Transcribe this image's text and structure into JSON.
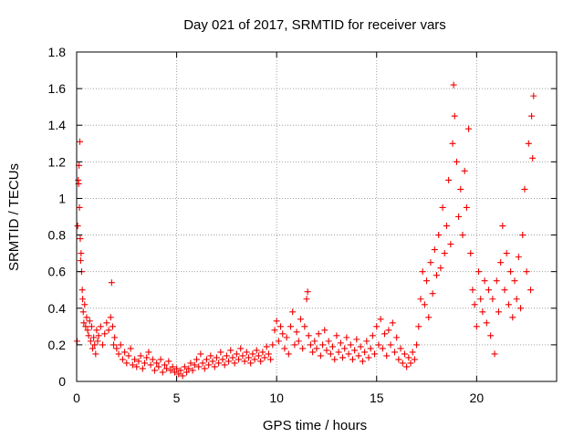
{
  "chart_data": {
    "type": "scatter",
    "title": "Day 021 of 2017, SRMTID for receiver vars",
    "xlabel": "GPS time / hours",
    "ylabel": "SRMTID / TECUs",
    "xlim": [
      0,
      24
    ],
    "ylim": [
      0,
      1.8
    ],
    "grid": true,
    "marker": "plus",
    "colors": {
      "points": "#ee0000",
      "axes": "#000000",
      "grid": "#a0a0a0"
    },
    "x_ticks": [
      {
        "value": 0,
        "label": "0"
      },
      {
        "value": 5,
        "label": "5"
      },
      {
        "value": 10,
        "label": "10"
      },
      {
        "value": 15,
        "label": "15"
      },
      {
        "value": 20,
        "label": "20"
      }
    ],
    "y_ticks": [
      {
        "value": 0,
        "label": "0"
      },
      {
        "value": 0.2,
        "label": "0.2"
      },
      {
        "value": 0.4,
        "label": "0.4"
      },
      {
        "value": 0.6,
        "label": "0.6"
      },
      {
        "value": 0.8,
        "label": "0.8"
      },
      {
        "value": 1.0,
        "label": "1"
      },
      {
        "value": 1.2,
        "label": "1.2"
      },
      {
        "value": 1.4,
        "label": "1.4"
      },
      {
        "value": 1.6,
        "label": "1.6"
      },
      {
        "value": 1.8,
        "label": "1.8"
      }
    ],
    "series": [
      {
        "name": "SRMTID",
        "points": [
          [
            0.02,
            0.22
          ],
          [
            0.05,
            0.85
          ],
          [
            0.08,
            1.1
          ],
          [
            0.1,
            1.08
          ],
          [
            0.12,
            1.18
          ],
          [
            0.14,
            0.95
          ],
          [
            0.16,
            1.31
          ],
          [
            0.18,
            0.78
          ],
          [
            0.2,
            0.66
          ],
          [
            0.22,
            0.7
          ],
          [
            0.25,
            0.6
          ],
          [
            0.28,
            0.5
          ],
          [
            0.3,
            0.45
          ],
          [
            0.33,
            0.38
          ],
          [
            0.36,
            0.32
          ],
          [
            0.4,
            0.42
          ],
          [
            0.45,
            0.3
          ],
          [
            0.5,
            0.35
          ],
          [
            0.55,
            0.28
          ],
          [
            0.6,
            0.25
          ],
          [
            0.65,
            0.33
          ],
          [
            0.7,
            0.22
          ],
          [
            0.75,
            0.3
          ],
          [
            0.8,
            0.18
          ],
          [
            0.85,
            0.24
          ],
          [
            0.9,
            0.2
          ],
          [
            0.95,
            0.15
          ],
          [
            1.0,
            0.28
          ],
          [
            1.05,
            0.22
          ],
          [
            1.1,
            0.25
          ],
          [
            1.2,
            0.3
          ],
          [
            1.3,
            0.2
          ],
          [
            1.4,
            0.26
          ],
          [
            1.5,
            0.32
          ],
          [
            1.6,
            0.28
          ],
          [
            1.7,
            0.35
          ],
          [
            1.75,
            0.54
          ],
          [
            1.8,
            0.3
          ],
          [
            1.85,
            0.2
          ],
          [
            1.9,
            0.24
          ],
          [
            2.0,
            0.18
          ],
          [
            2.1,
            0.15
          ],
          [
            2.2,
            0.2
          ],
          [
            2.3,
            0.12
          ],
          [
            2.4,
            0.16
          ],
          [
            2.5,
            0.1
          ],
          [
            2.6,
            0.14
          ],
          [
            2.7,
            0.18
          ],
          [
            2.8,
            0.09
          ],
          [
            2.9,
            0.12
          ],
          [
            3.0,
            0.08
          ],
          [
            3.1,
            0.11
          ],
          [
            3.2,
            0.14
          ],
          [
            3.3,
            0.07
          ],
          [
            3.4,
            0.1
          ],
          [
            3.5,
            0.13
          ],
          [
            3.6,
            0.16
          ],
          [
            3.7,
            0.09
          ],
          [
            3.8,
            0.12
          ],
          [
            3.9,
            0.06
          ],
          [
            4.0,
            0.1
          ],
          [
            4.1,
            0.08
          ],
          [
            4.2,
            0.12
          ],
          [
            4.3,
            0.05
          ],
          [
            4.4,
            0.09
          ],
          [
            4.5,
            0.07
          ],
          [
            4.6,
            0.11
          ],
          [
            4.7,
            0.06
          ],
          [
            4.8,
            0.08
          ],
          [
            4.9,
            0.05
          ],
          [
            5.0,
            0.07
          ],
          [
            5.1,
            0.04
          ],
          [
            5.2,
            0.06
          ],
          [
            5.3,
            0.03
          ],
          [
            5.4,
            0.08
          ],
          [
            5.5,
            0.05
          ],
          [
            5.6,
            0.07
          ],
          [
            5.7,
            0.1
          ],
          [
            5.8,
            0.06
          ],
          [
            5.9,
            0.09
          ],
          [
            6.0,
            0.12
          ],
          [
            6.1,
            0.08
          ],
          [
            6.2,
            0.15
          ],
          [
            6.3,
            0.1
          ],
          [
            6.4,
            0.07
          ],
          [
            6.5,
            0.12
          ],
          [
            6.6,
            0.09
          ],
          [
            6.7,
            0.14
          ],
          [
            6.8,
            0.11
          ],
          [
            6.9,
            0.08
          ],
          [
            7.0,
            0.13
          ],
          [
            7.1,
            0.1
          ],
          [
            7.2,
            0.16
          ],
          [
            7.3,
            0.12
          ],
          [
            7.4,
            0.09
          ],
          [
            7.5,
            0.14
          ],
          [
            7.6,
            0.11
          ],
          [
            7.7,
            0.17
          ],
          [
            7.8,
            0.13
          ],
          [
            7.9,
            0.1
          ],
          [
            8.0,
            0.15
          ],
          [
            8.1,
            0.12
          ],
          [
            8.2,
            0.18
          ],
          [
            8.3,
            0.14
          ],
          [
            8.4,
            0.11
          ],
          [
            8.5,
            0.16
          ],
          [
            8.6,
            0.13
          ],
          [
            8.7,
            0.1
          ],
          [
            8.8,
            0.15
          ],
          [
            8.9,
            0.12
          ],
          [
            9.0,
            0.17
          ],
          [
            9.1,
            0.14
          ],
          [
            9.2,
            0.11
          ],
          [
            9.3,
            0.16
          ],
          [
            9.4,
            0.13
          ],
          [
            9.5,
            0.19
          ],
          [
            9.6,
            0.15
          ],
          [
            9.7,
            0.12
          ],
          [
            9.8,
            0.2
          ],
          [
            9.9,
            0.28
          ],
          [
            10.0,
            0.33
          ],
          [
            10.1,
            0.22
          ],
          [
            10.2,
            0.3
          ],
          [
            10.3,
            0.26
          ],
          [
            10.4,
            0.18
          ],
          [
            10.5,
            0.24
          ],
          [
            10.6,
            0.15
          ],
          [
            10.7,
            0.3
          ],
          [
            10.8,
            0.38
          ],
          [
            10.9,
            0.2
          ],
          [
            11.0,
            0.27
          ],
          [
            11.1,
            0.22
          ],
          [
            11.2,
            0.34
          ],
          [
            11.3,
            0.18
          ],
          [
            11.4,
            0.3
          ],
          [
            11.5,
            0.45
          ],
          [
            11.55,
            0.49
          ],
          [
            11.6,
            0.25
          ],
          [
            11.7,
            0.2
          ],
          [
            11.8,
            0.16
          ],
          [
            11.9,
            0.22
          ],
          [
            12.0,
            0.18
          ],
          [
            12.1,
            0.26
          ],
          [
            12.2,
            0.14
          ],
          [
            12.3,
            0.2
          ],
          [
            12.4,
            0.28
          ],
          [
            12.5,
            0.17
          ],
          [
            12.6,
            0.22
          ],
          [
            12.7,
            0.15
          ],
          [
            12.8,
            0.19
          ],
          [
            12.9,
            0.12
          ],
          [
            13.0,
            0.25
          ],
          [
            13.1,
            0.16
          ],
          [
            13.2,
            0.21
          ],
          [
            13.3,
            0.13
          ],
          [
            13.4,
            0.18
          ],
          [
            13.5,
            0.24
          ],
          [
            13.6,
            0.15
          ],
          [
            13.7,
            0.2
          ],
          [
            13.8,
            0.12
          ],
          [
            13.9,
            0.17
          ],
          [
            14.0,
            0.23
          ],
          [
            14.1,
            0.14
          ],
          [
            14.2,
            0.19
          ],
          [
            14.3,
            0.11
          ],
          [
            14.4,
            0.16
          ],
          [
            14.5,
            0.22
          ],
          [
            14.6,
            0.13
          ],
          [
            14.7,
            0.18
          ],
          [
            14.8,
            0.25
          ],
          [
            14.9,
            0.15
          ],
          [
            15.0,
            0.3
          ],
          [
            15.1,
            0.2
          ],
          [
            15.2,
            0.34
          ],
          [
            15.3,
            0.18
          ],
          [
            15.4,
            0.26
          ],
          [
            15.5,
            0.14
          ],
          [
            15.6,
            0.28
          ],
          [
            15.7,
            0.2
          ],
          [
            15.8,
            0.32
          ],
          [
            15.9,
            0.16
          ],
          [
            16.0,
            0.24
          ],
          [
            16.1,
            0.12
          ],
          [
            16.2,
            0.18
          ],
          [
            16.3,
            0.1
          ],
          [
            16.4,
            0.15
          ],
          [
            16.5,
            0.08
          ],
          [
            16.6,
            0.13
          ],
          [
            16.7,
            0.1
          ],
          [
            16.8,
            0.16
          ],
          [
            16.9,
            0.12
          ],
          [
            17.0,
            0.2
          ],
          [
            17.1,
            0.3
          ],
          [
            17.2,
            0.45
          ],
          [
            17.3,
            0.6
          ],
          [
            17.4,
            0.42
          ],
          [
            17.5,
            0.55
          ],
          [
            17.6,
            0.35
          ],
          [
            17.7,
            0.65
          ],
          [
            17.8,
            0.48
          ],
          [
            17.9,
            0.72
          ],
          [
            18.0,
            0.58
          ],
          [
            18.1,
            0.8
          ],
          [
            18.2,
            0.62
          ],
          [
            18.3,
            0.95
          ],
          [
            18.4,
            0.7
          ],
          [
            18.5,
            0.85
          ],
          [
            18.6,
            1.1
          ],
          [
            18.7,
            0.75
          ],
          [
            18.8,
            1.3
          ],
          [
            18.85,
            1.62
          ],
          [
            18.9,
            1.45
          ],
          [
            19.0,
            1.2
          ],
          [
            19.1,
            0.9
          ],
          [
            19.2,
            1.05
          ],
          [
            19.3,
            0.8
          ],
          [
            19.4,
            1.15
          ],
          [
            19.5,
            0.95
          ],
          [
            19.6,
            1.38
          ],
          [
            19.7,
            0.7
          ],
          [
            19.8,
            0.5
          ],
          [
            19.9,
            0.42
          ],
          [
            20.0,
            0.3
          ],
          [
            20.1,
            0.6
          ],
          [
            20.2,
            0.45
          ],
          [
            20.3,
            0.38
          ],
          [
            20.4,
            0.55
          ],
          [
            20.5,
            0.32
          ],
          [
            20.6,
            0.5
          ],
          [
            20.7,
            0.25
          ],
          [
            20.8,
            0.45
          ],
          [
            20.9,
            0.15
          ],
          [
            21.0,
            0.55
          ],
          [
            21.1,
            0.38
          ],
          [
            21.2,
            0.65
          ],
          [
            21.3,
            0.85
          ],
          [
            21.4,
            0.5
          ],
          [
            21.5,
            0.7
          ],
          [
            21.6,
            0.42
          ],
          [
            21.7,
            0.6
          ],
          [
            21.8,
            0.35
          ],
          [
            21.9,
            0.55
          ],
          [
            22.0,
            0.45
          ],
          [
            22.1,
            0.68
          ],
          [
            22.2,
            0.4
          ],
          [
            22.3,
            0.8
          ],
          [
            22.4,
            1.05
          ],
          [
            22.5,
            0.6
          ],
          [
            22.6,
            1.3
          ],
          [
            22.7,
            0.5
          ],
          [
            22.75,
            1.45
          ],
          [
            22.8,
            1.22
          ],
          [
            22.85,
            1.56
          ]
        ]
      }
    ]
  }
}
